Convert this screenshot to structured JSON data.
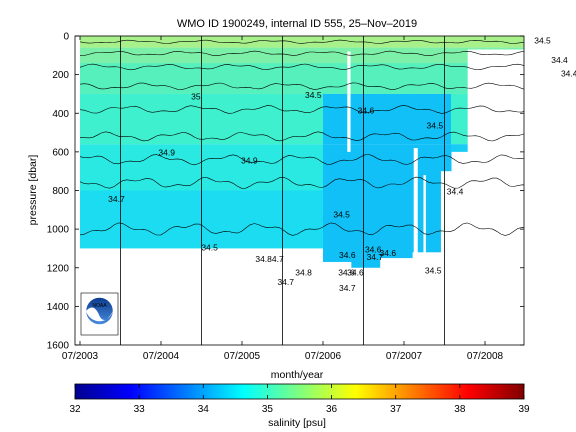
{
  "chart_data": {
    "type": "heatmap",
    "title": "WMO ID 1900249, internal ID 555, 25–Nov–2019",
    "xlabel": "month/year",
    "ylabel": "pressure [dbar]",
    "x_ticks": [
      "07/2003",
      "07/2004",
      "07/2005",
      "07/2006",
      "07/2007",
      "07/2008"
    ],
    "y_ticks": [
      0,
      200,
      400,
      600,
      800,
      1000,
      1200,
      1400,
      1600
    ],
    "ylim": [
      1600,
      0
    ],
    "y_reversed": true,
    "grid": false,
    "colorbar": {
      "label": "salinity [psu]",
      "ticks": [
        32,
        33,
        34,
        35,
        36,
        37,
        38,
        39
      ],
      "range": [
        32,
        39
      ],
      "colormap": "jet"
    },
    "contour_labels": [
      {
        "text": "34.5",
        "t": 5.71,
        "p": 40
      },
      {
        "text": "35",
        "t": 1.43,
        "p": 330
      },
      {
        "text": "34.9",
        "t": 1.07,
        "p": 620
      },
      {
        "text": "34.7",
        "t": 0.45,
        "p": 860
      },
      {
        "text": "34.5",
        "t": 1.6,
        "p": 1110
      },
      {
        "text": "34.9",
        "t": 2.09,
        "p": 660
      },
      {
        "text": "34.5",
        "t": 2.88,
        "p": 320
      },
      {
        "text": "34.6",
        "t": 3.53,
        "p": 400
      },
      {
        "text": "34.5",
        "t": 3.23,
        "p": 940
      },
      {
        "text": "34.6",
        "t": 3.62,
        "p": 1120
      },
      {
        "text": "34.5",
        "t": 4.38,
        "p": 480
      },
      {
        "text": "34.4",
        "t": 4.63,
        "p": 820
      },
      {
        "text": "34.4",
        "t": 6.04,
        "p": 210
      },
      {
        "text": "34.4",
        "t": 5.92,
        "p": 140
      },
      {
        "text": "34.5",
        "t": 4.36,
        "p": 1230
      },
      {
        "text": "34.6",
        "t": 3.8,
        "p": 1140
      },
      {
        "text": "34.84.7",
        "t": 2.34,
        "p": 1170
      },
      {
        "text": "34.8",
        "t": 2.76,
        "p": 1240
      },
      {
        "text": "34.7",
        "t": 2.54,
        "p": 1290
      },
      {
        "text": "34.6",
        "t": 3.3,
        "p": 1150
      },
      {
        "text": "34.6",
        "t": 3.29,
        "p": 1240
      },
      {
        "text": "34.6",
        "t": 3.4,
        "p": 1240
      },
      {
        "text": "34.7",
        "t": 3.3,
        "p": 1320
      },
      {
        "text": "34.7",
        "t": 3.64,
        "p": 1160
      }
    ]
  },
  "logo": {
    "text": "NOAA"
  }
}
